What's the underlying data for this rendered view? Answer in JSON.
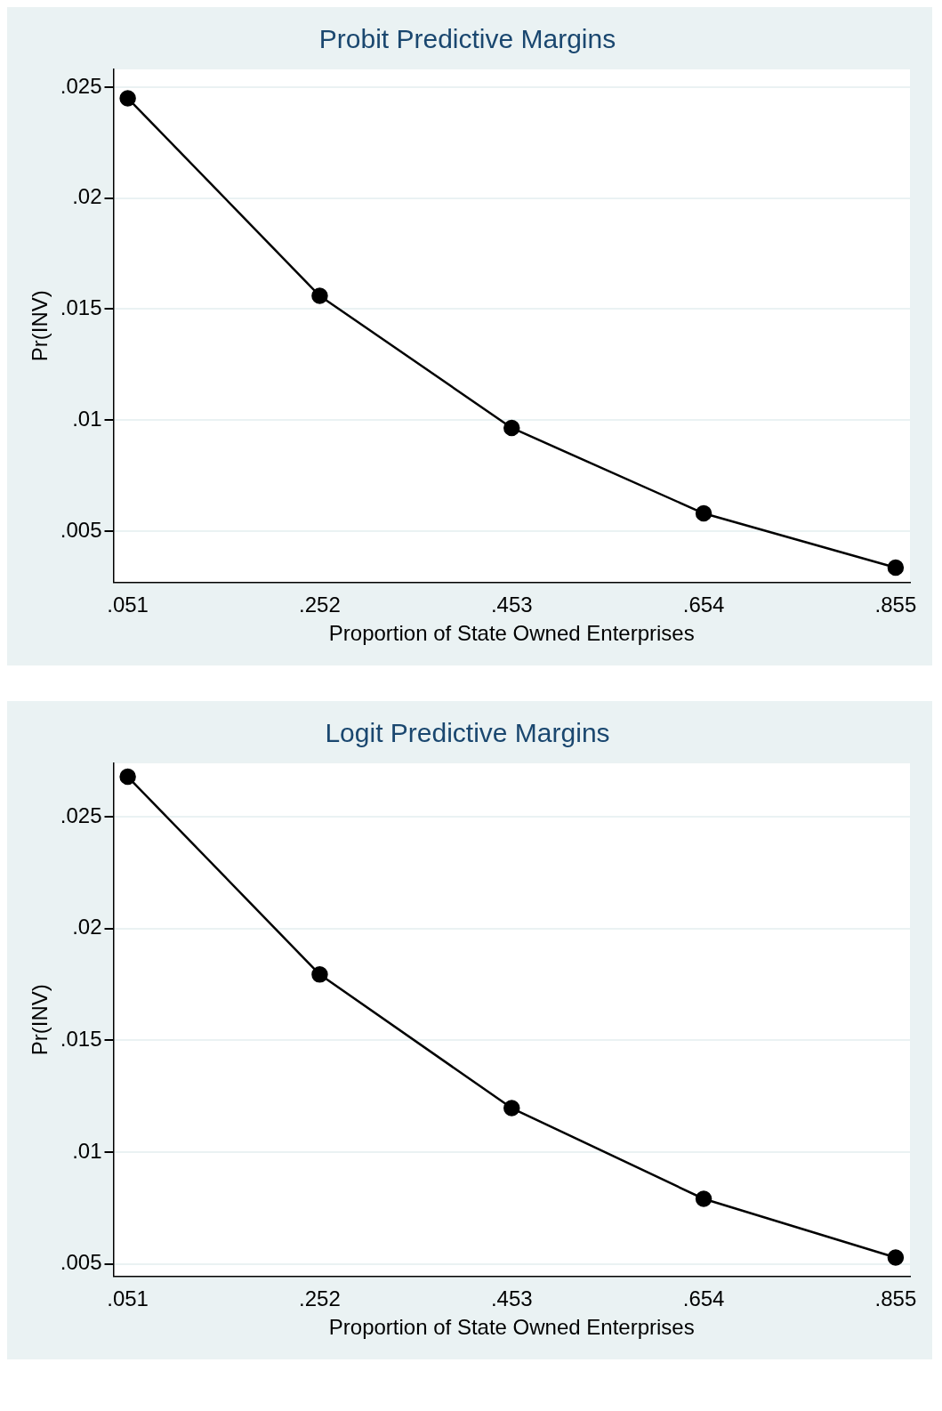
{
  "chart_data": [
    {
      "type": "line",
      "title": "Probit Predictive Margins",
      "xlabel": "Proportion of State Owned Enterprises",
      "ylabel": "Pr(INV)",
      "x": [
        0.051,
        0.252,
        0.453,
        0.654,
        0.855
      ],
      "series": [
        {
          "color": "#000000",
          "values": [
            0.0245,
            0.0156,
            0.00965,
            0.0058,
            0.00336
          ]
        }
      ],
      "xlim": [
        0.036,
        0.87
      ],
      "xticks": [
        {
          "value": 0.051,
          "label": ".051"
        },
        {
          "value": 0.252,
          "label": ".252"
        },
        {
          "value": 0.453,
          "label": ".453"
        },
        {
          "value": 0.654,
          "label": ".654"
        },
        {
          "value": 0.855,
          "label": ".855"
        }
      ],
      "ylim": [
        0.0027,
        0.0258
      ],
      "yticks": [
        {
          "value": 0.005,
          "label": ".005"
        },
        {
          "value": 0.01,
          "label": ".01"
        },
        {
          "value": 0.015,
          "label": ".015"
        },
        {
          "value": 0.02,
          "label": ".02"
        },
        {
          "value": 0.025,
          "label": ".025"
        }
      ],
      "grid": "y",
      "marker": "circle",
      "line_style": "solid",
      "legend": false
    },
    {
      "type": "line",
      "title": "Logit Predictive Margins",
      "xlabel": "Proportion of State Owned Enterprises",
      "ylabel": "Pr(INV)",
      "x": [
        0.051,
        0.252,
        0.453,
        0.654,
        0.855
      ],
      "series": [
        {
          "color": "#000000",
          "values": [
            0.0268,
            0.01795,
            0.01197,
            0.00791,
            0.00528
          ]
        }
      ],
      "xlim": [
        0.036,
        0.87
      ],
      "xticks": [
        {
          "value": 0.051,
          "label": ".051"
        },
        {
          "value": 0.252,
          "label": ".252"
        },
        {
          "value": 0.453,
          "label": ".453"
        },
        {
          "value": 0.654,
          "label": ".654"
        },
        {
          "value": 0.855,
          "label": ".855"
        }
      ],
      "ylim": [
        0.00445,
        0.0274
      ],
      "yticks": [
        {
          "value": 0.005,
          "label": ".005"
        },
        {
          "value": 0.01,
          "label": ".01"
        },
        {
          "value": 0.015,
          "label": ".015"
        },
        {
          "value": 0.02,
          "label": ".02"
        },
        {
          "value": 0.025,
          "label": ".025"
        }
      ],
      "grid": "y",
      "marker": "circle",
      "line_style": "solid",
      "legend": false
    }
  ]
}
